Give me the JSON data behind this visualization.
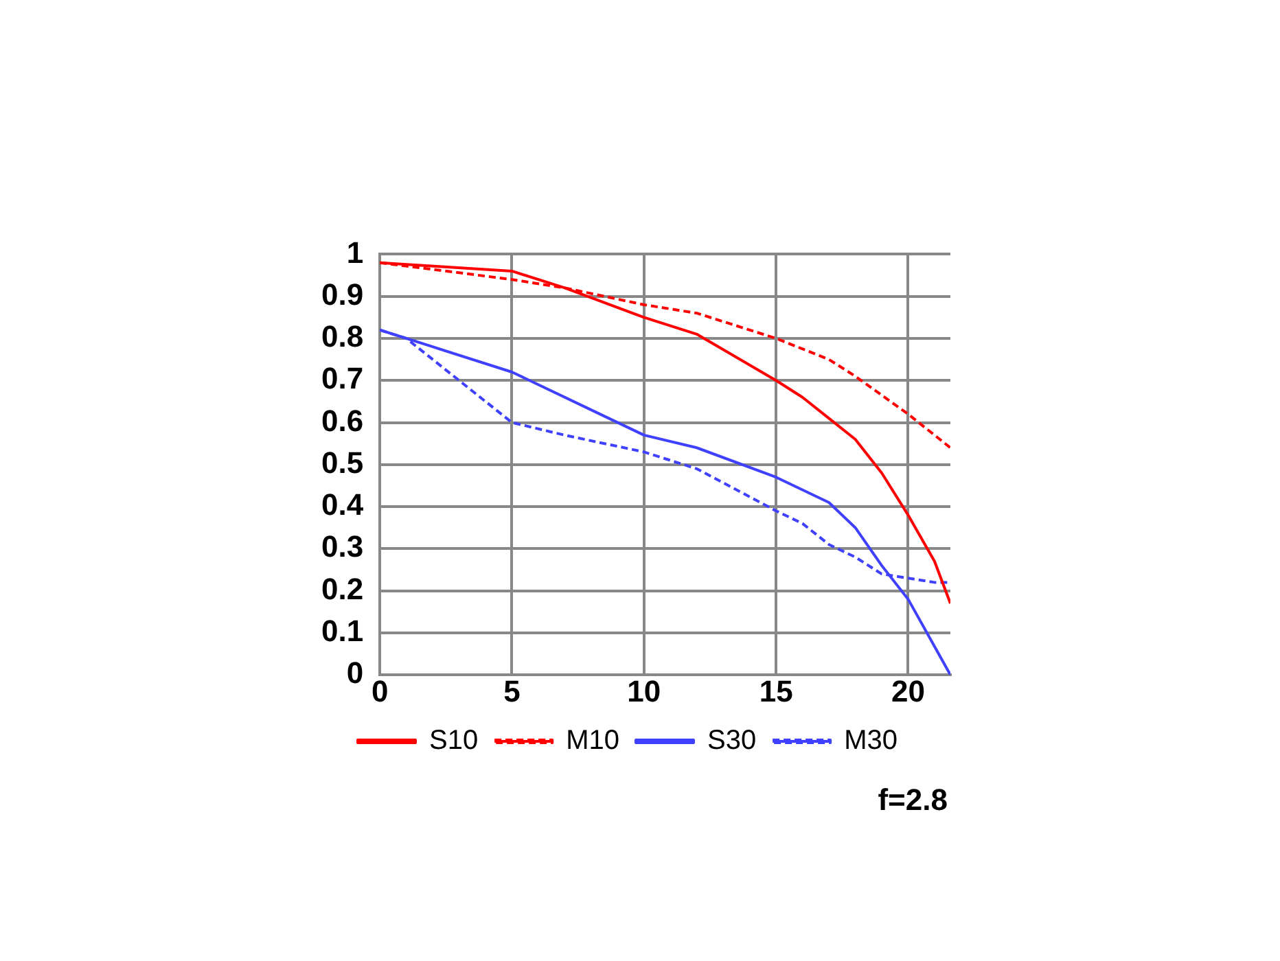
{
  "chart_data": {
    "type": "line",
    "annotations": [
      "f=2.8"
    ],
    "xlim": [
      0,
      21.6
    ],
    "xticks": [
      0,
      5,
      10,
      15,
      20
    ],
    "ylim": [
      0,
      1
    ],
    "yticks": [
      0,
      0.1,
      0.2,
      0.3,
      0.4,
      0.5,
      0.6,
      0.7,
      0.8,
      0.9,
      1
    ],
    "grid": true,
    "legend": "bottom",
    "marker": "none",
    "series": [
      {
        "name": "S10",
        "color": "#ff0000",
        "line_style": "solid",
        "x": [
          0,
          5,
          7,
          10,
          12,
          15,
          16,
          17,
          18,
          19,
          20,
          21,
          21.6
        ],
        "values": [
          0.98,
          0.96,
          0.92,
          0.85,
          0.81,
          0.7,
          0.66,
          0.61,
          0.56,
          0.48,
          0.38,
          0.27,
          0.17
        ]
      },
      {
        "name": "M10",
        "color": "#ff0000",
        "line_style": "dashed",
        "x": [
          0,
          5,
          7,
          10,
          12,
          15,
          17,
          18,
          20,
          21.6
        ],
        "values": [
          0.98,
          0.94,
          0.92,
          0.88,
          0.86,
          0.8,
          0.75,
          0.71,
          0.62,
          0.54
        ]
      },
      {
        "name": "S30",
        "color": "#4040ff",
        "line_style": "solid",
        "x": [
          0,
          2,
          5,
          8,
          10,
          12,
          15,
          17,
          18,
          19,
          20,
          21.6
        ],
        "values": [
          0.82,
          0.78,
          0.72,
          0.63,
          0.57,
          0.54,
          0.47,
          0.41,
          0.35,
          0.26,
          0.18,
          0
        ]
      },
      {
        "name": "M30",
        "color": "#4040ff",
        "line_style": "dashed",
        "x": [
          0,
          1,
          3,
          5,
          7,
          10,
          12,
          15,
          16,
          17,
          18,
          19,
          20,
          21,
          21.6
        ],
        "values": [
          0.82,
          0.8,
          0.7,
          0.6,
          0.57,
          0.53,
          0.49,
          0.39,
          0.36,
          0.31,
          0.28,
          0.24,
          0.23,
          0.22,
          0.22
        ]
      }
    ]
  }
}
